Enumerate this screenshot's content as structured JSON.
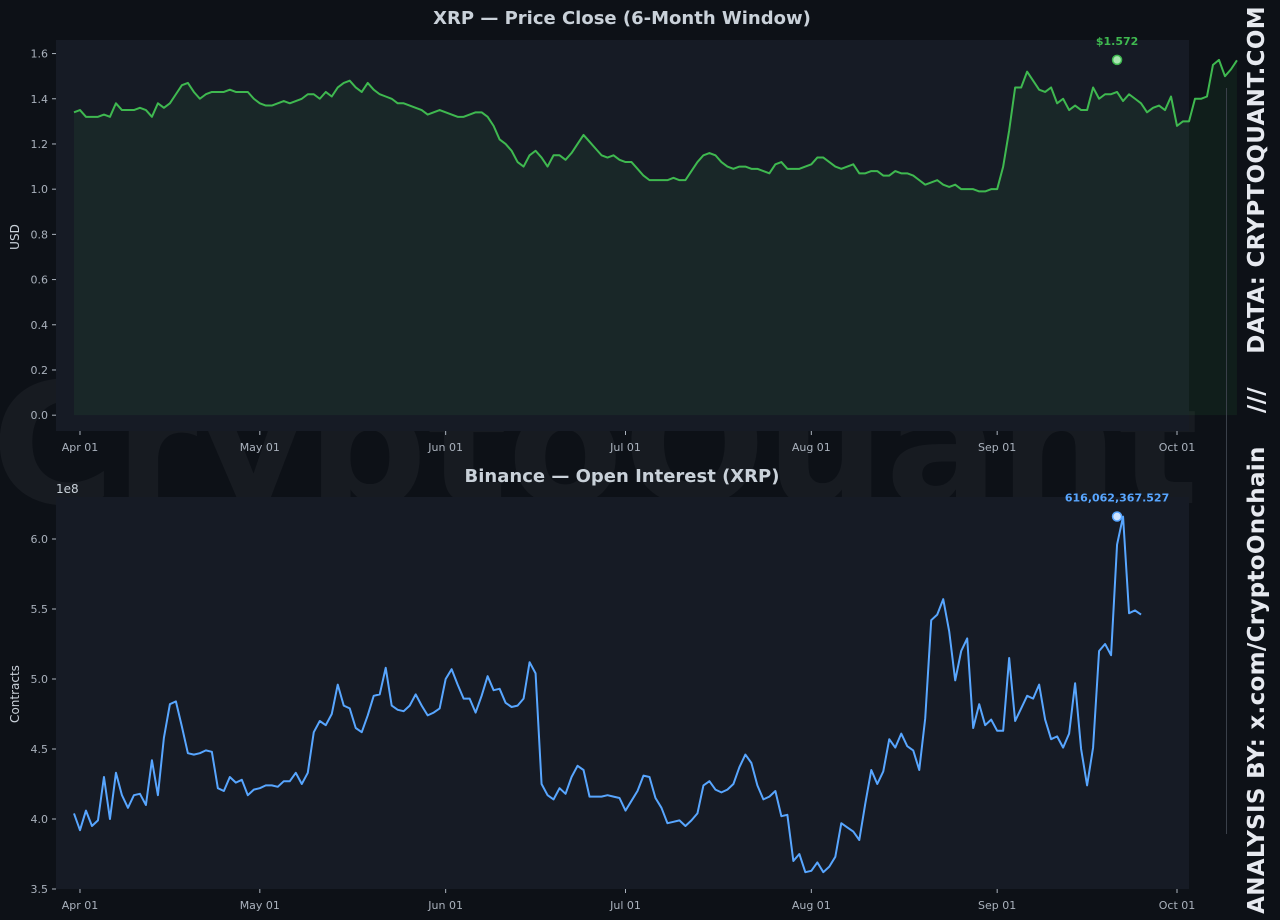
{
  "watermark": "CryptoQuant",
  "sidebar": {
    "analysis_text": "ANALYSIS BY: x.com/CryptoOnchain",
    "separator": "///",
    "data_text": "DATA: CRYPTOQUANT.COM"
  },
  "colors": {
    "background": "#0d1117",
    "plot_background": "#161b25",
    "price_line": "#3fb950",
    "oi_line": "#58a6ff",
    "text": "#c9d1d9",
    "tick_text": "#aab2bd"
  },
  "chart_data": [
    {
      "type": "area",
      "title": "XRP — Price Close (6-Month Window)",
      "xlabel": "",
      "ylabel": "USD",
      "x_ticks": [
        "Apr 01",
        "May 01",
        "Jun 01",
        "Jul 01",
        "Aug 01",
        "Sep 01",
        "Oct 01"
      ],
      "x_tick_dates": [
        "2025-04-01",
        "2025-05-01",
        "2025-06-01",
        "2025-07-01",
        "2025-08-01",
        "2025-09-01",
        "2025-10-01"
      ],
      "xlim": [
        "2025-03-28",
        "2025-10-03"
      ],
      "ylim": [
        -0.07,
        1.66
      ],
      "y_ticks": [
        0.0,
        0.2,
        0.4,
        0.6,
        0.8,
        1.0,
        1.2,
        1.4,
        1.6
      ],
      "y_tick_labels": [
        "0.0",
        "0.2",
        "0.4",
        "0.6",
        "0.8",
        "1.0",
        "1.2",
        "1.4",
        "1.6"
      ],
      "x_start": "2025-03-31",
      "values": [
        1.34,
        1.35,
        1.32,
        1.32,
        1.32,
        1.33,
        1.32,
        1.38,
        1.35,
        1.35,
        1.35,
        1.36,
        1.35,
        1.32,
        1.38,
        1.36,
        1.38,
        1.42,
        1.46,
        1.47,
        1.43,
        1.4,
        1.42,
        1.43,
        1.43,
        1.43,
        1.44,
        1.43,
        1.43,
        1.43,
        1.4,
        1.38,
        1.37,
        1.37,
        1.38,
        1.39,
        1.38,
        1.39,
        1.4,
        1.42,
        1.42,
        1.4,
        1.43,
        1.41,
        1.45,
        1.47,
        1.48,
        1.45,
        1.43,
        1.47,
        1.44,
        1.42,
        1.41,
        1.4,
        1.38,
        1.38,
        1.37,
        1.36,
        1.35,
        1.33,
        1.34,
        1.35,
        1.34,
        1.33,
        1.32,
        1.32,
        1.33,
        1.34,
        1.34,
        1.32,
        1.28,
        1.22,
        1.2,
        1.17,
        1.12,
        1.1,
        1.15,
        1.17,
        1.14,
        1.1,
        1.15,
        1.15,
        1.13,
        1.16,
        1.2,
        1.24,
        1.21,
        1.18,
        1.15,
        1.14,
        1.15,
        1.13,
        1.12,
        1.12,
        1.09,
        1.06,
        1.04,
        1.04,
        1.04,
        1.04,
        1.05,
        1.04,
        1.04,
        1.08,
        1.12,
        1.15,
        1.16,
        1.15,
        1.12,
        1.1,
        1.09,
        1.1,
        1.1,
        1.09,
        1.09,
        1.08,
        1.07,
        1.11,
        1.12,
        1.09,
        1.09,
        1.09,
        1.1,
        1.11,
        1.14,
        1.14,
        1.12,
        1.1,
        1.09,
        1.1,
        1.11,
        1.07,
        1.07,
        1.08,
        1.08,
        1.06,
        1.06,
        1.08,
        1.07,
        1.07,
        1.06,
        1.04,
        1.02,
        1.03,
        1.04,
        1.02,
        1.01,
        1.02,
        1.0,
        1.0,
        1.0,
        0.99,
        0.99,
        1.0,
        1.0,
        1.1,
        1.26,
        1.45,
        1.45,
        1.52,
        1.48,
        1.44,
        1.43,
        1.45,
        1.38,
        1.4,
        1.35,
        1.37,
        1.35,
        1.35,
        1.45,
        1.4,
        1.42,
        1.42,
        1.43,
        1.39,
        1.42,
        1.4,
        1.38,
        1.34,
        1.36,
        1.37,
        1.35,
        1.41,
        1.28,
        1.3,
        1.3,
        1.4,
        1.4,
        1.41,
        1.55,
        1.572,
        1.5,
        1.53,
        1.57
      ],
      "peak": {
        "date": "2025-09-21",
        "value": 1.572,
        "label": "$1.572"
      }
    },
    {
      "type": "line",
      "title": "Binance — Open Interest (XRP)",
      "xlabel": "",
      "ylabel": "Contracts",
      "y_scale_label": "1e8",
      "x_ticks": [
        "Apr 01",
        "May 01",
        "Jun 01",
        "Jul 01",
        "Aug 01",
        "Sep 01",
        "Oct 01"
      ],
      "x_tick_dates": [
        "2025-04-01",
        "2025-05-01",
        "2025-06-01",
        "2025-07-01",
        "2025-08-01",
        "2025-09-01",
        "2025-10-01"
      ],
      "xlim": [
        "2025-03-28",
        "2025-10-03"
      ],
      "ylim": [
        3.5,
        6.3
      ],
      "y_ticks": [
        3.5,
        4.0,
        4.5,
        5.0,
        5.5,
        6.0
      ],
      "y_tick_labels": [
        "3.5",
        "4.0",
        "4.5",
        "5.0",
        "5.5",
        "6.0"
      ],
      "x_start": "2025-03-31",
      "values": [
        4.04,
        3.92,
        4.06,
        3.95,
        3.99,
        4.3,
        4.0,
        4.33,
        4.17,
        4.08,
        4.17,
        4.18,
        4.1,
        4.42,
        4.17,
        4.58,
        4.82,
        4.84,
        4.66,
        4.47,
        4.46,
        4.47,
        4.49,
        4.48,
        4.22,
        4.2,
        4.3,
        4.26,
        4.28,
        4.17,
        4.21,
        4.22,
        4.24,
        4.24,
        4.23,
        4.27,
        4.27,
        4.33,
        4.25,
        4.33,
        4.62,
        4.7,
        4.67,
        4.75,
        4.96,
        4.81,
        4.79,
        4.65,
        4.62,
        4.74,
        4.88,
        4.89,
        5.08,
        4.81,
        4.78,
        4.77,
        4.81,
        4.89,
        4.81,
        4.74,
        4.76,
        4.79,
        5.0,
        5.07,
        4.96,
        4.86,
        4.86,
        4.76,
        4.88,
        5.02,
        4.92,
        4.93,
        4.83,
        4.8,
        4.81,
        4.86,
        5.12,
        5.04,
        4.25,
        4.17,
        4.14,
        4.22,
        4.18,
        4.3,
        4.38,
        4.35,
        4.16,
        4.16,
        4.16,
        4.17,
        4.16,
        4.15,
        4.06,
        4.13,
        4.2,
        4.31,
        4.3,
        4.15,
        4.08,
        3.97,
        3.98,
        3.99,
        3.95,
        3.99,
        4.04,
        4.24,
        4.27,
        4.21,
        4.19,
        4.21,
        4.25,
        4.37,
        4.46,
        4.4,
        4.24,
        4.14,
        4.16,
        4.2,
        4.02,
        4.03,
        3.7,
        3.75,
        3.62,
        3.63,
        3.69,
        3.62,
        3.66,
        3.73,
        3.97,
        3.94,
        3.91,
        3.85,
        4.11,
        4.35,
        4.25,
        4.34,
        4.57,
        4.51,
        4.61,
        4.52,
        4.49,
        4.35,
        4.72,
        5.42,
        5.46,
        5.57,
        5.34,
        4.99,
        5.2,
        5.29,
        4.65,
        4.82,
        4.67,
        4.71,
        4.63,
        4.63,
        5.15,
        4.7,
        4.79,
        4.88,
        4.86,
        4.96,
        4.71,
        4.57,
        4.59,
        4.51,
        4.61,
        4.97,
        4.5,
        4.24,
        4.51,
        5.2,
        5.25,
        5.17,
        5.96,
        6.16,
        5.47,
        5.49,
        5.46
      ],
      "peak": {
        "date": "2025-09-21",
        "value": 6.16062367527,
        "label": "616,062,367.527"
      }
    }
  ]
}
